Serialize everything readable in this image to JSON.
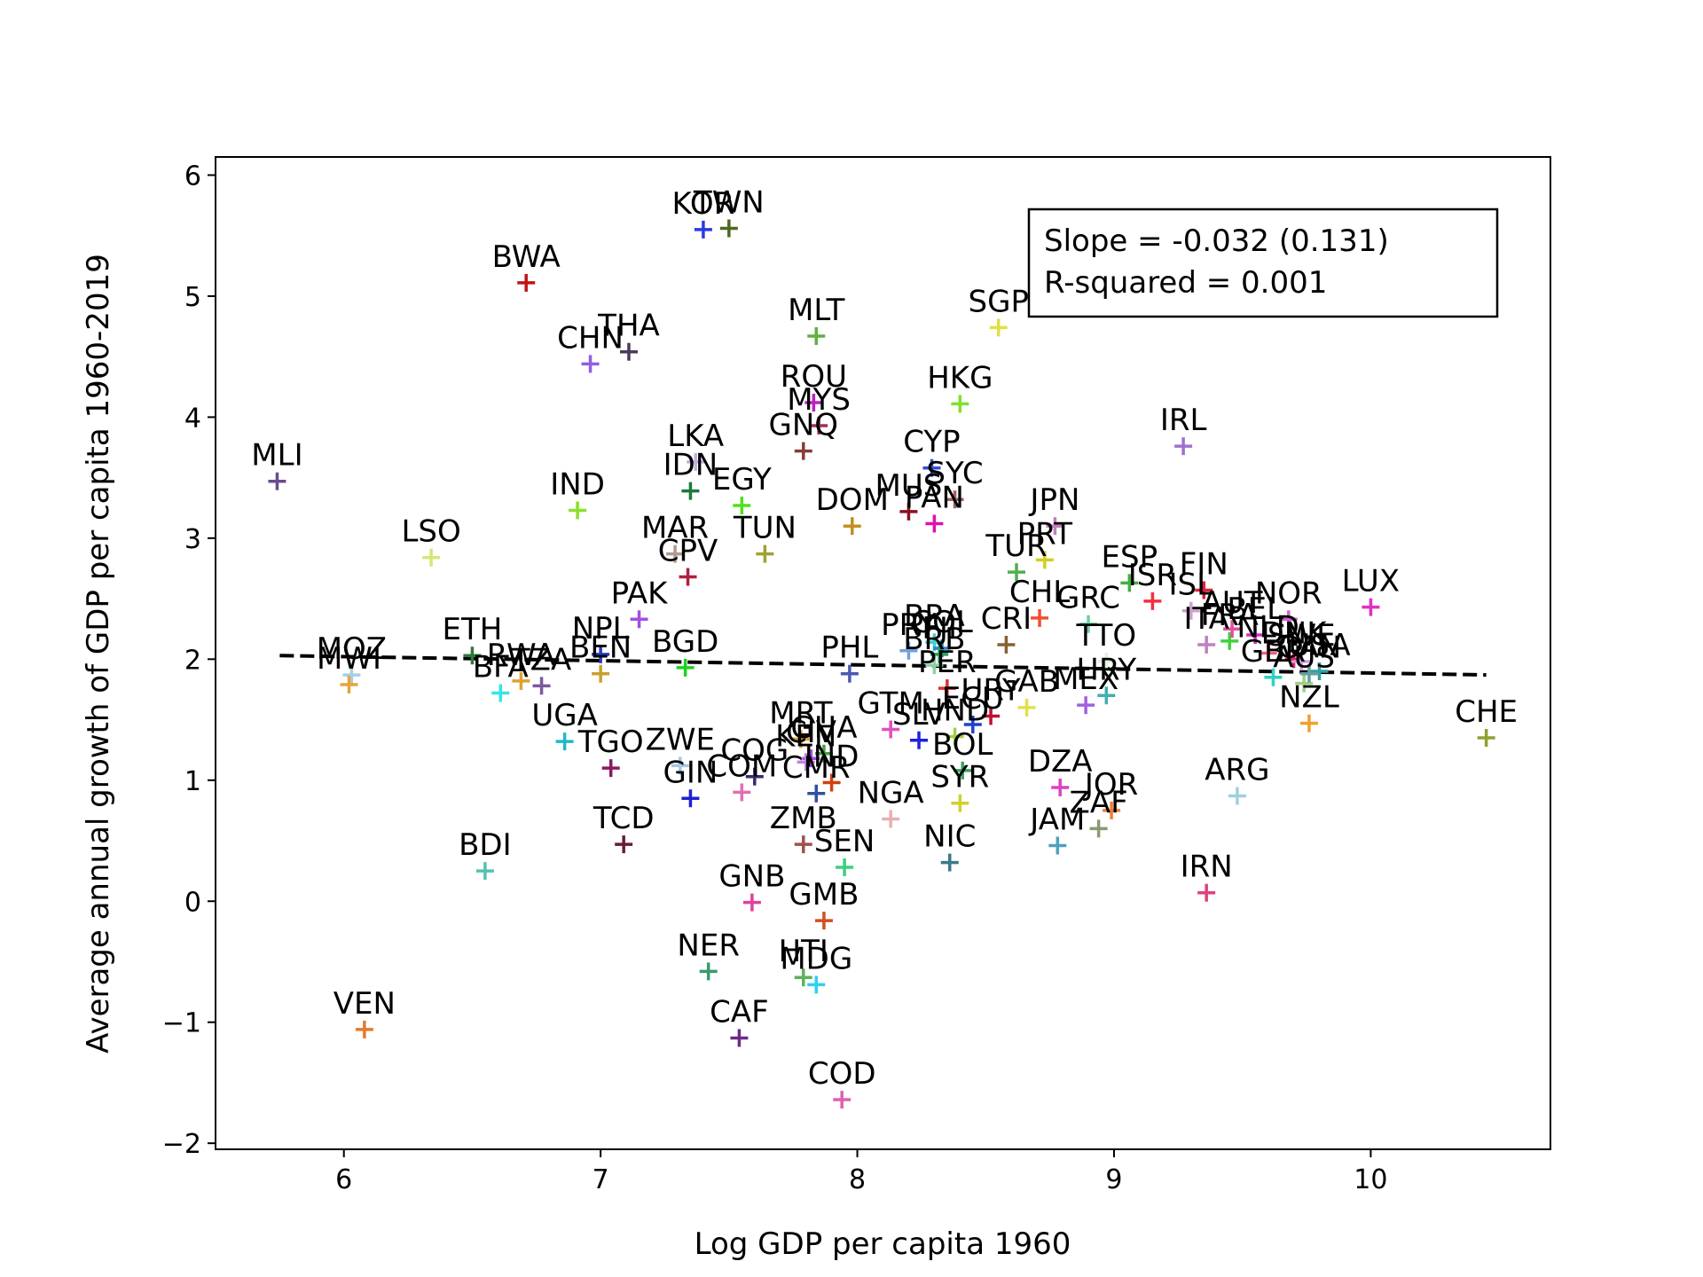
{
  "chart_data": {
    "type": "scatter",
    "xlabel": "Log GDP per capita 1960",
    "ylabel": "Average annual growth of GDP per capita 1960-2019",
    "xlim": [
      5.5,
      10.7
    ],
    "ylim": [
      -2.05,
      6.15
    ],
    "xticks": [
      6,
      7,
      8,
      9,
      10
    ],
    "xtick_labels": [
      "6",
      "7",
      "8",
      "9",
      "10"
    ],
    "yticks": [
      -2,
      -1,
      0,
      1,
      2,
      3,
      4,
      5,
      6
    ],
    "ytick_labels": [
      "−2",
      "−1",
      "0",
      "1",
      "2",
      "3",
      "4",
      "5",
      "6"
    ],
    "grid": false,
    "marker": "+",
    "fit_line": {
      "style": "dashed",
      "color": "#000000",
      "x": [
        5.75,
        10.45
      ],
      "y": [
        2.03,
        1.87
      ]
    },
    "annotation": {
      "lines": [
        "Slope = -0.032 (0.131)",
        "R-squared = 0.001"
      ],
      "placement": "top-right"
    },
    "points": [
      {
        "label": "MLI",
        "x": 5.74,
        "y": 3.47,
        "color": "#6a4c8c"
      },
      {
        "label": "VEN",
        "x": 6.08,
        "y": -1.06,
        "color": "#e57a2f"
      },
      {
        "label": "MOZ",
        "x": 6.03,
        "y": 1.87,
        "color": "#a8cfe0"
      },
      {
        "label": "MWI",
        "x": 6.02,
        "y": 1.79,
        "color": "#e8a33a"
      },
      {
        "label": "LSO",
        "x": 6.34,
        "y": 2.84,
        "color": "#d6e67a"
      },
      {
        "label": "BDI",
        "x": 6.55,
        "y": 0.25,
        "color": "#52c2b0"
      },
      {
        "label": "ETH",
        "x": 6.5,
        "y": 2.03,
        "color": "#2f7a3a"
      },
      {
        "label": "BFA",
        "x": 6.61,
        "y": 1.72,
        "color": "#34e6e6"
      },
      {
        "label": "RWA",
        "x": 6.69,
        "y": 1.82,
        "color": "#e0a030"
      },
      {
        "label": "TZA",
        "x": 6.77,
        "y": 1.78,
        "color": "#7a5aa0"
      },
      {
        "label": "BWA",
        "x": 6.71,
        "y": 5.11,
        "color": "#c01414"
      },
      {
        "label": "UGA",
        "x": 6.86,
        "y": 1.32,
        "color": "#20b8c8"
      },
      {
        "label": "IND",
        "x": 6.91,
        "y": 3.23,
        "color": "#8ae02a"
      },
      {
        "label": "CHN",
        "x": 6.96,
        "y": 4.44,
        "color": "#9060e0"
      },
      {
        "label": "NPL",
        "x": 7.0,
        "y": 2.04,
        "color": "#2a3ac0"
      },
      {
        "label": "BEN",
        "x": 7.0,
        "y": 1.88,
        "color": "#c8a030"
      },
      {
        "label": "TGO",
        "x": 7.04,
        "y": 1.1,
        "color": "#8a1a60"
      },
      {
        "label": "TCD",
        "x": 7.09,
        "y": 0.47,
        "color": "#6a1a3a"
      },
      {
        "label": "THA",
        "x": 7.11,
        "y": 4.54,
        "color": "#4a3a5a"
      },
      {
        "label": "PAK",
        "x": 7.15,
        "y": 2.33,
        "color": "#a050e0"
      },
      {
        "label": "ZWE",
        "x": 7.31,
        "y": 1.12,
        "color": "#a8c8e0"
      },
      {
        "label": "BGD",
        "x": 7.33,
        "y": 1.93,
        "color": "#20d020"
      },
      {
        "label": "GIN",
        "x": 7.35,
        "y": 0.85,
        "color": "#2020d0"
      },
      {
        "label": "MAR",
        "x": 7.29,
        "y": 2.87,
        "color": "#b09a90"
      },
      {
        "label": "CPV",
        "x": 7.34,
        "y": 2.68,
        "color": "#b02040"
      },
      {
        "label": "LKA",
        "x": 7.37,
        "y": 3.63,
        "color": "#c0b0e0"
      },
      {
        "label": "IDN",
        "x": 7.35,
        "y": 3.39,
        "color": "#1a7a3a"
      },
      {
        "label": "KOR",
        "x": 7.4,
        "y": 5.55,
        "color": "#2a3ae0"
      },
      {
        "label": "TWN",
        "x": 7.5,
        "y": 5.56,
        "color": "#4a6a20"
      },
      {
        "label": "NER",
        "x": 7.42,
        "y": -0.58,
        "color": "#3a9a70"
      },
      {
        "label": "CAF",
        "x": 7.54,
        "y": -1.13,
        "color": "#6a2a8a"
      },
      {
        "label": "GNB",
        "x": 7.59,
        "y": -0.01,
        "color": "#e040a0"
      },
      {
        "label": "COG",
        "x": 7.6,
        "y": 1.03,
        "color": "#3a2a6a"
      },
      {
        "label": "COM",
        "x": 7.55,
        "y": 0.9,
        "color": "#e070b0"
      },
      {
        "label": "EGY",
        "x": 7.55,
        "y": 3.27,
        "color": "#50e020"
      },
      {
        "label": "TUN",
        "x": 7.64,
        "y": 2.87,
        "color": "#a0a030"
      },
      {
        "label": "MRT",
        "x": 7.78,
        "y": 1.34,
        "color": "#e0a030"
      },
      {
        "label": "CIV",
        "x": 7.82,
        "y": 1.18,
        "color": "#a050e0"
      },
      {
        "label": "KEN",
        "x": 7.8,
        "y": 1.15,
        "color": "#c080e0"
      },
      {
        "label": "CMR",
        "x": 7.84,
        "y": 0.89,
        "color": "#3050a0"
      },
      {
        "label": "ZMB",
        "x": 7.79,
        "y": 0.47,
        "color": "#a05050"
      },
      {
        "label": "SEN",
        "x": 7.95,
        "y": 0.28,
        "color": "#3ad080"
      },
      {
        "label": "GMB",
        "x": 7.87,
        "y": -0.16,
        "color": "#d05020"
      },
      {
        "label": "HTI",
        "x": 7.79,
        "y": -0.63,
        "color": "#60b060"
      },
      {
        "label": "MDG",
        "x": 7.84,
        "y": -0.69,
        "color": "#30d0f0"
      },
      {
        "label": "COD",
        "x": 7.94,
        "y": -1.64,
        "color": "#e060b0"
      },
      {
        "label": "MLT",
        "x": 7.84,
        "y": 4.67,
        "color": "#60b040"
      },
      {
        "label": "ROU",
        "x": 7.83,
        "y": 4.12,
        "color": "#c020c0"
      },
      {
        "label": "MYS",
        "x": 7.85,
        "y": 3.93,
        "color": "#a03050"
      },
      {
        "label": "GNQ",
        "x": 7.79,
        "y": 3.72,
        "color": "#8a3a3a"
      },
      {
        "label": "GHA",
        "x": 7.87,
        "y": 1.22,
        "color": "#40a040"
      },
      {
        "label": "IND",
        "x": 7.9,
        "y": 0.98,
        "color": "#d04010"
      },
      {
        "label": "NGA",
        "x": 8.13,
        "y": 0.68,
        "color": "#e8b0b0"
      },
      {
        "label": "PHL",
        "x": 7.97,
        "y": 1.88,
        "color": "#4a5ab0"
      },
      {
        "label": "DOM",
        "x": 7.98,
        "y": 3.1,
        "color": "#c09020"
      },
      {
        "label": "MUS",
        "x": 8.2,
        "y": 3.22,
        "color": "#8a1020"
      },
      {
        "label": "SYC",
        "x": 8.38,
        "y": 3.32,
        "color": "#a06060"
      },
      {
        "label": "CYP",
        "x": 8.29,
        "y": 3.58,
        "color": "#3050d0"
      },
      {
        "label": "PAN",
        "x": 8.3,
        "y": 3.12,
        "color": "#e010b0"
      },
      {
        "label": "HKG",
        "x": 8.4,
        "y": 4.11,
        "color": "#80e030"
      },
      {
        "label": "SGP",
        "x": 8.55,
        "y": 4.74,
        "color": "#e0e040"
      },
      {
        "label": "BRA",
        "x": 8.3,
        "y": 2.14,
        "color": "#40d0d0"
      },
      {
        "label": "PRY",
        "x": 8.2,
        "y": 2.07,
        "color": "#70a0e0"
      },
      {
        "label": "COL",
        "x": 8.33,
        "y": 2.09,
        "color": "#3080d0"
      },
      {
        "label": "FJI",
        "x": 8.32,
        "y": 2.04,
        "color": "#20a060"
      },
      {
        "label": "BRB",
        "x": 8.3,
        "y": 1.95,
        "color": "#90d0a0"
      },
      {
        "label": "PER",
        "x": 8.35,
        "y": 1.76,
        "color": "#e03030"
      },
      {
        "label": "GTM",
        "x": 8.13,
        "y": 1.42,
        "color": "#e050c0"
      },
      {
        "label": "SLV",
        "x": 8.24,
        "y": 1.33,
        "color": "#2020e0"
      },
      {
        "label": "HND",
        "x": 8.38,
        "y": 1.36,
        "color": "#a0d040"
      },
      {
        "label": "BOL",
        "x": 8.41,
        "y": 1.08,
        "color": "#40a060"
      },
      {
        "label": "ECU",
        "x": 8.45,
        "y": 1.46,
        "color": "#2040d0"
      },
      {
        "label": "SYR",
        "x": 8.4,
        "y": 0.81,
        "color": "#d0d030"
      },
      {
        "label": "NIC",
        "x": 8.36,
        "y": 0.32,
        "color": "#3a7a8a"
      },
      {
        "label": "CRI",
        "x": 8.58,
        "y": 2.12,
        "color": "#8a6030"
      },
      {
        "label": "URY",
        "x": 8.52,
        "y": 1.53,
        "color": "#c01030"
      },
      {
        "label": "GAB",
        "x": 8.66,
        "y": 1.6,
        "color": "#e0e050"
      },
      {
        "label": "TUR",
        "x": 8.62,
        "y": 2.72,
        "color": "#50b050"
      },
      {
        "label": "PRT",
        "x": 8.73,
        "y": 2.82,
        "color": "#d0d020"
      },
      {
        "label": "JPN",
        "x": 8.77,
        "y": 3.1,
        "color": "#c080c0"
      },
      {
        "label": "CHL",
        "x": 8.71,
        "y": 2.34,
        "color": "#f05030"
      },
      {
        "label": "GRC",
        "x": 8.9,
        "y": 2.29,
        "color": "#70d0a0"
      },
      {
        "label": "MEX",
        "x": 8.89,
        "y": 1.62,
        "color": "#a060e0"
      },
      {
        "label": "TTO",
        "x": 8.97,
        "y": 1.98,
        "color": "#e0f0e0"
      },
      {
        "label": "HRY",
        "x": 8.97,
        "y": 1.7,
        "color": "#40b0b0"
      },
      {
        "label": "DZA",
        "x": 8.79,
        "y": 0.94,
        "color": "#e040c0"
      },
      {
        "label": "JAM",
        "x": 8.78,
        "y": 0.46,
        "color": "#50a0c0"
      },
      {
        "label": "JOR",
        "x": 8.99,
        "y": 0.75,
        "color": "#f08030"
      },
      {
        "label": "ZAF",
        "x": 8.94,
        "y": 0.6,
        "color": "#8a9a70"
      },
      {
        "label": "IRL",
        "x": 9.27,
        "y": 3.76,
        "color": "#a070d0"
      },
      {
        "label": "ESP",
        "x": 9.06,
        "y": 2.63,
        "color": "#40b040"
      },
      {
        "label": "ISR",
        "x": 9.15,
        "y": 2.48,
        "color": "#f03040"
      },
      {
        "label": "FIN",
        "x": 9.35,
        "y": 2.57,
        "color": "#e02040"
      },
      {
        "label": "ISL",
        "x": 9.3,
        "y": 2.4,
        "color": "#d0a0d0"
      },
      {
        "label": "ITA",
        "x": 9.36,
        "y": 2.12,
        "color": "#c080c0"
      },
      {
        "label": "FRA",
        "x": 9.45,
        "y": 2.15,
        "color": "#40d040"
      },
      {
        "label": "AUT",
        "x": 9.46,
        "y": 2.25,
        "color": "#e050a0"
      },
      {
        "label": "BEL",
        "x": 9.55,
        "y": 2.2,
        "color": "#d030c0"
      },
      {
        "label": "NLD",
        "x": 9.6,
        "y": 2.05,
        "color": "#f06080"
      },
      {
        "label": "NOR",
        "x": 9.68,
        "y": 2.33,
        "color": "#d060d0"
      },
      {
        "label": "DNK",
        "x": 9.7,
        "y": 2.0,
        "color": "#e02060"
      },
      {
        "label": "SWE",
        "x": 9.73,
        "y": 1.98,
        "color": "#d0a0e0"
      },
      {
        "label": "GBR",
        "x": 9.62,
        "y": 1.85,
        "color": "#30d0c0"
      },
      {
        "label": "USA",
        "x": 9.8,
        "y": 1.9,
        "color": "#30a0a0"
      },
      {
        "label": "AUS",
        "x": 9.74,
        "y": 1.8,
        "color": "#a0d080"
      },
      {
        "label": "CAN",
        "x": 9.76,
        "y": 1.88,
        "color": "#60a0a0"
      },
      {
        "label": "NZL",
        "x": 9.76,
        "y": 1.47,
        "color": "#f0a030"
      },
      {
        "label": "LUX",
        "x": 10.0,
        "y": 2.43,
        "color": "#e030c0"
      },
      {
        "label": "ARG",
        "x": 9.48,
        "y": 0.87,
        "color": "#a0d0e0"
      },
      {
        "label": "IRN",
        "x": 9.36,
        "y": 0.07,
        "color": "#e04080"
      },
      {
        "label": "CHE",
        "x": 10.45,
        "y": 1.35,
        "color": "#90a030"
      }
    ]
  }
}
